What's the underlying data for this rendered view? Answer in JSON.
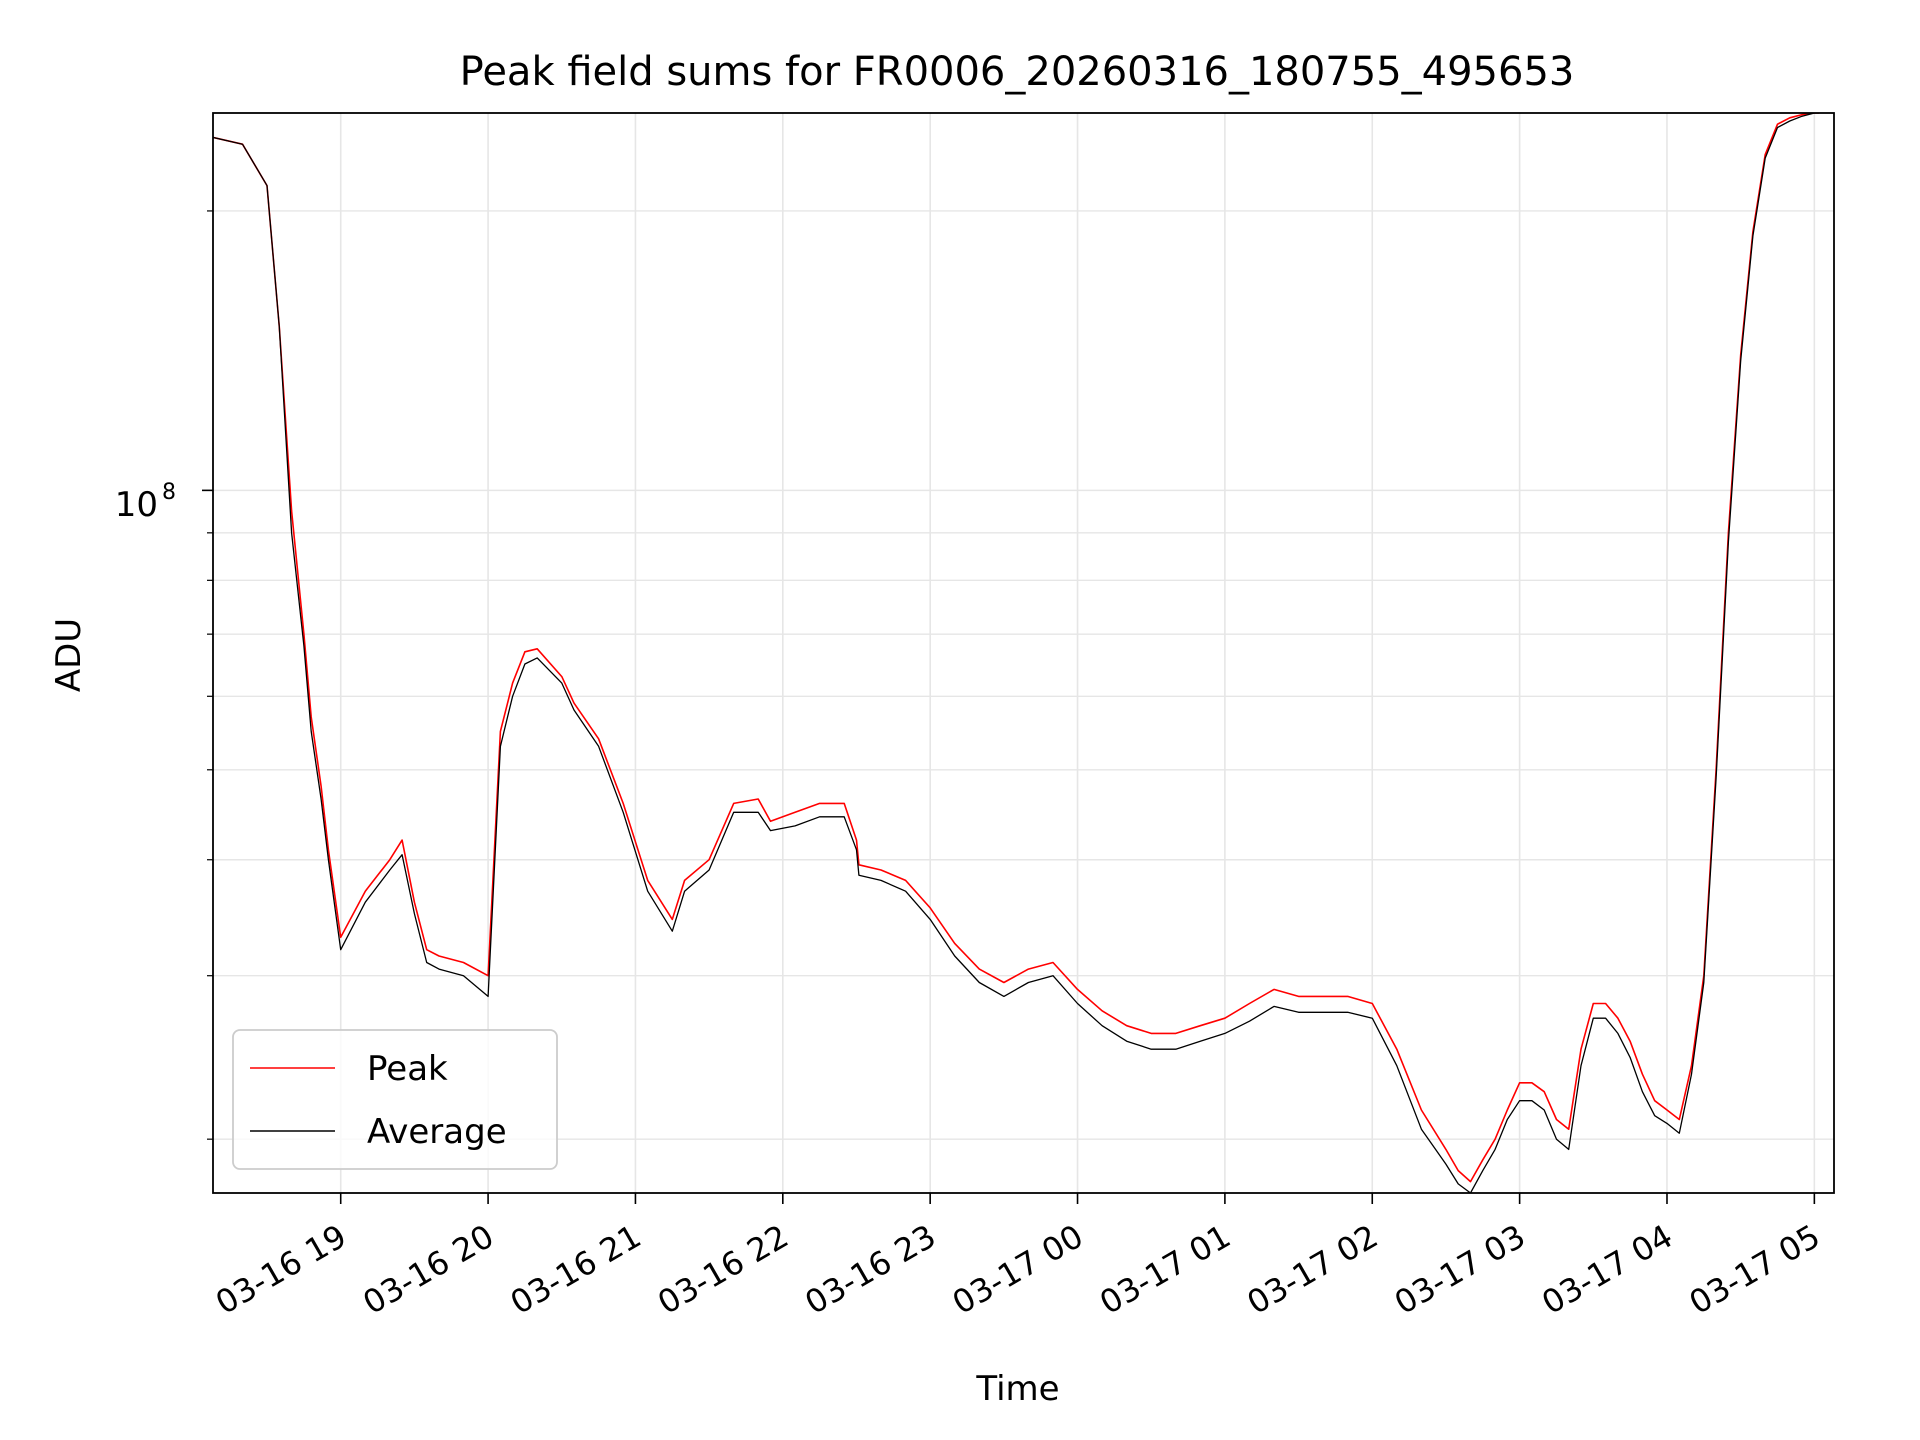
{
  "chart_data": {
    "type": "line",
    "title": "Peak field sums for FR0006_20260316_180755_495653",
    "xlabel": "Time",
    "ylabel": "ADU",
    "yscale": "log",
    "xlim": [
      "2026-03-16 18:08",
      "2026-03-17 05:08"
    ],
    "ylim": [
      17500000,
      255000000
    ],
    "grid": true,
    "legend": {
      "placement": "lower-left"
    },
    "x_ticks": [
      "03-16 19",
      "03-16 20",
      "03-16 21",
      "03-16 22",
      "03-16 23",
      "03-17 00",
      "03-17 01",
      "03-17 02",
      "03-17 03",
      "03-17 04",
      "03-17 05"
    ],
    "y_tick_label": {
      "base": "10",
      "exp": "8"
    },
    "y_major_tick": 100000000,
    "y_minor_ticks": [
      20000000,
      30000000,
      40000000,
      50000000,
      60000000,
      70000000,
      80000000,
      90000000,
      200000000
    ],
    "x_dates": [
      "2026-03-16 18:08",
      "2026-03-16 18:20",
      "2026-03-16 18:30",
      "2026-03-16 18:35",
      "2026-03-16 18:40",
      "2026-03-16 18:45",
      "2026-03-16 18:48",
      "2026-03-16 18:52",
      "2026-03-16 18:55",
      "2026-03-16 19:00",
      "2026-03-16 19:10",
      "2026-03-16 19:20",
      "2026-03-16 19:25",
      "2026-03-16 19:30",
      "2026-03-16 19:35",
      "2026-03-16 19:40",
      "2026-03-16 19:50",
      "2026-03-16 20:00",
      "2026-03-16 20:05",
      "2026-03-16 20:10",
      "2026-03-16 20:15",
      "2026-03-16 20:20",
      "2026-03-16 20:30",
      "2026-03-16 20:35",
      "2026-03-16 20:45",
      "2026-03-16 20:55",
      "2026-03-16 21:05",
      "2026-03-16 21:15",
      "2026-03-16 21:20",
      "2026-03-16 21:30",
      "2026-03-16 21:40",
      "2026-03-16 21:50",
      "2026-03-16 21:55",
      "2026-03-16 22:05",
      "2026-03-16 22:15",
      "2026-03-16 22:25",
      "2026-03-16 22:30",
      "2026-03-16 22:31",
      "2026-03-16 22:40",
      "2026-03-16 22:50",
      "2026-03-16 23:00",
      "2026-03-16 23:10",
      "2026-03-16 23:20",
      "2026-03-16 23:30",
      "2026-03-16 23:40",
      "2026-03-16 23:50",
      "2026-03-17 00:00",
      "2026-03-17 00:10",
      "2026-03-17 00:20",
      "2026-03-17 00:30",
      "2026-03-17 00:40",
      "2026-03-17 00:50",
      "2026-03-17 01:00",
      "2026-03-17 01:10",
      "2026-03-17 01:20",
      "2026-03-17 01:30",
      "2026-03-17 01:40",
      "2026-03-17 01:50",
      "2026-03-17 02:00",
      "2026-03-17 02:10",
      "2026-03-17 02:20",
      "2026-03-17 02:30",
      "2026-03-17 02:35",
      "2026-03-17 02:40",
      "2026-03-17 02:45",
      "2026-03-17 02:50",
      "2026-03-17 02:55",
      "2026-03-17 03:00",
      "2026-03-17 03:05",
      "2026-03-17 03:10",
      "2026-03-17 03:15",
      "2026-03-17 03:20",
      "2026-03-17 03:25",
      "2026-03-17 03:30",
      "2026-03-17 03:35",
      "2026-03-17 03:40",
      "2026-03-17 03:45",
      "2026-03-17 03:50",
      "2026-03-17 03:55",
      "2026-03-17 04:00",
      "2026-03-17 04:05",
      "2026-03-17 04:10",
      "2026-03-17 04:15",
      "2026-03-17 04:20",
      "2026-03-17 04:25",
      "2026-03-17 04:30",
      "2026-03-17 04:35",
      "2026-03-17 04:40",
      "2026-03-17 04:45",
      "2026-03-17 04:50",
      "2026-03-17 04:55",
      "2026-03-17 05:00",
      "2026-03-17 05:02"
    ],
    "series": [
      {
        "name": "Peak",
        "color": "#ff0000",
        "values": [
          240000000,
          236000000,
          213000000,
          150000000,
          95000000,
          70000000,
          57000000,
          48000000,
          41000000,
          33000000,
          37000000,
          40000000,
          42000000,
          36000000,
          32000000,
          31500000,
          31000000,
          30000000,
          55000000,
          62000000,
          67000000,
          67500000,
          63000000,
          59000000,
          54000000,
          46000000,
          38000000,
          34500000,
          38000000,
          40000000,
          46000000,
          46500000,
          44000000,
          45000000,
          46000000,
          46000000,
          42000000,
          39500000,
          39000000,
          38000000,
          35500000,
          32500000,
          30500000,
          29500000,
          30500000,
          31000000,
          29000000,
          27500000,
          26500000,
          26000000,
          26000000,
          26500000,
          27000000,
          28000000,
          29000000,
          28500000,
          28500000,
          28500000,
          28000000,
          25000000,
          21500000,
          19500000,
          18500000,
          18000000,
          19000000,
          20000000,
          21500000,
          23000000,
          23000000,
          22500000,
          21000000,
          20500000,
          25000000,
          28000000,
          28000000,
          27000000,
          25500000,
          23500000,
          22000000,
          21500000,
          21000000,
          24000000,
          30000000,
          50000000,
          90000000,
          140000000,
          190000000,
          230000000,
          248000000,
          252000000,
          254000000,
          255000000,
          255000000
        ]
      },
      {
        "name": "Average",
        "color": "#000000",
        "values": [
          240000000,
          236000000,
          213000000,
          150000000,
          90000000,
          68000000,
          55000000,
          46500000,
          40000000,
          32000000,
          36000000,
          39000000,
          40500000,
          35000000,
          31000000,
          30500000,
          30000000,
          28500000,
          53000000,
          60000000,
          65000000,
          66000000,
          62000000,
          58000000,
          53000000,
          45000000,
          37000000,
          33500000,
          37000000,
          39000000,
          45000000,
          45000000,
          43000000,
          43500000,
          44500000,
          44500000,
          41000000,
          38500000,
          38000000,
          37000000,
          34500000,
          31500000,
          29500000,
          28500000,
          29500000,
          30000000,
          28000000,
          26500000,
          25500000,
          25000000,
          25000000,
          25500000,
          26000000,
          26800000,
          27800000,
          27400000,
          27400000,
          27400000,
          27000000,
          24000000,
          20500000,
          18800000,
          17900000,
          17500000,
          18500000,
          19500000,
          21000000,
          22000000,
          22000000,
          21500000,
          20000000,
          19500000,
          24000000,
          27000000,
          27000000,
          26000000,
          24500000,
          22500000,
          21200000,
          20800000,
          20300000,
          23500000,
          29500000,
          49000000,
          88000000,
          138000000,
          188000000,
          228000000,
          246000000,
          250000000,
          253000000,
          255000000,
          255000000
        ]
      }
    ]
  }
}
